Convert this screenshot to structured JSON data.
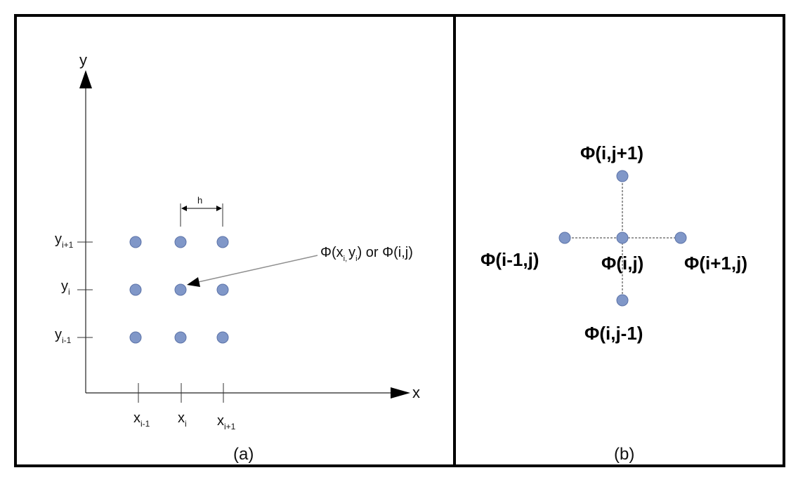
{
  "colors": {
    "node_fill": "#8097c8",
    "node_stroke": "#5c73a8",
    "frame": "#000000",
    "axis": "#222222",
    "arrow": "#8f8f8f"
  },
  "panel_a": {
    "caption": "(a)",
    "axis_x_label": "x",
    "axis_y_label": "y",
    "y_ticks": [
      {
        "base": "y",
        "sub": "i+1"
      },
      {
        "base": "y",
        "sub": "i"
      },
      {
        "base": "y",
        "sub": "i-1"
      }
    ],
    "x_ticks": [
      {
        "base": "x",
        "sub": "i-1"
      },
      {
        "base": "x",
        "sub": "i"
      },
      {
        "base": "x",
        "sub": "i+1"
      }
    ],
    "spacing_label": "h",
    "callout": {
      "phi": "Φ(x",
      "sub1": "i",
      "comma": ",",
      "y": "y",
      "sub2": "i",
      "tail": ") or Φ(i,j)"
    }
  },
  "panel_b": {
    "caption": "(b)",
    "top_label": "Φ(i,j+1)",
    "left_label": "Φ(i-1,j)",
    "center_label": "Φ(i,j)",
    "right_label": "Φ(i+1,j)",
    "bottom_label": "Φ(i,j-1)"
  }
}
